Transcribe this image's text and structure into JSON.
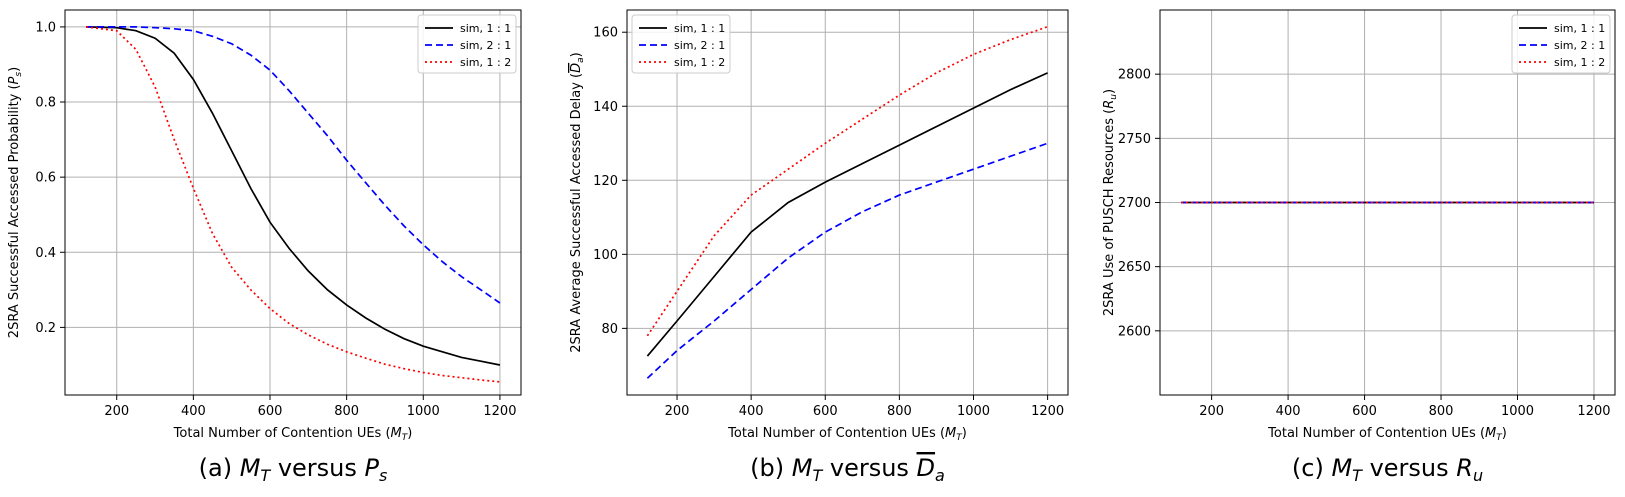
{
  "figure": {
    "captions": [
      "(a) M_T versus P_s",
      "(b) M_T versus D_a (overline)",
      "(c) M_T versus R_u"
    ]
  },
  "chart_data": [
    {
      "type": "line",
      "caption": {
        "prefix": "(a)",
        "left_var": "M",
        "left_sub": "T",
        "word": "versus",
        "right_var": "P",
        "right_sub": "s",
        "overline": false
      },
      "xlabel": "Total Number of Contention UEs (M_T)",
      "ylabel": "2SRA Successful Accessed Probability (P_s)",
      "xlabel_parts": {
        "text": "Total Number of Contention UEs (",
        "var": "M",
        "sub": "T",
        "close": ")"
      },
      "ylabel_parts": {
        "text": "2SRA Successful Accessed Probability (",
        "var": "P",
        "sub": "s",
        "close": ")"
      },
      "xlim": [
        65,
        1255
      ],
      "ylim": [
        0.02,
        1.045
      ],
      "xticks": [
        200,
        400,
        600,
        800,
        1000,
        1200
      ],
      "yticks": [
        0.2,
        0.4,
        0.6,
        0.8,
        1.0
      ],
      "ytick_labels": [
        "0.2",
        "0.4",
        "0.6",
        "0.8",
        "1.0"
      ],
      "grid": true,
      "legend_position": "upper right",
      "x": [
        120,
        200,
        250,
        300,
        350,
        400,
        450,
        500,
        550,
        600,
        650,
        700,
        750,
        800,
        850,
        900,
        950,
        1000,
        1050,
        1100,
        1150,
        1200
      ],
      "series": [
        {
          "name": "sim, 1 : 1",
          "color": "#000000",
          "style": "solid",
          "values": [
            1.0,
            0.998,
            0.99,
            0.97,
            0.93,
            0.86,
            0.77,
            0.67,
            0.57,
            0.48,
            0.41,
            0.35,
            0.3,
            0.26,
            0.225,
            0.195,
            0.17,
            0.15,
            0.135,
            0.12,
            0.11,
            0.1
          ]
        },
        {
          "name": "sim, 2 : 1",
          "color": "#0000ff",
          "style": "dashed",
          "values": [
            1.0,
            1.0,
            1.0,
            0.998,
            0.995,
            0.99,
            0.975,
            0.955,
            0.925,
            0.885,
            0.83,
            0.77,
            0.71,
            0.645,
            0.585,
            0.525,
            0.47,
            0.42,
            0.375,
            0.335,
            0.3,
            0.265
          ]
        },
        {
          "name": "sim, 1 : 2",
          "color": "#ff0000",
          "style": "dotted",
          "values": [
            1.0,
            0.99,
            0.94,
            0.84,
            0.7,
            0.57,
            0.45,
            0.36,
            0.3,
            0.25,
            0.21,
            0.18,
            0.155,
            0.135,
            0.118,
            0.102,
            0.09,
            0.08,
            0.072,
            0.066,
            0.06,
            0.055
          ]
        }
      ],
      "legend_entries": [
        {
          "label": "sim, 1 : 1",
          "color": "#000000",
          "style": "solid"
        },
        {
          "label": "sim, 2 : 1",
          "color": "#0000ff",
          "style": "dashed"
        },
        {
          "label": "sim, 1 : 2",
          "color": "#ff0000",
          "style": "dotted"
        }
      ]
    },
    {
      "type": "line",
      "caption": {
        "prefix": "(b)",
        "left_var": "M",
        "left_sub": "T",
        "word": "versus",
        "right_var": "D",
        "right_sub": "a",
        "overline": true
      },
      "xlabel": "Total Number of Contention UEs (M_T)",
      "ylabel": "2SRA Average Successful Accessed Delay (D_a overline)",
      "xlabel_parts": {
        "text": "Total Number of Contention UEs (",
        "var": "M",
        "sub": "T",
        "close": ")"
      },
      "ylabel_parts": {
        "text": "2SRA Average Successful Accessed Delay (",
        "var": "D",
        "sub": "a",
        "close": ")"
      },
      "xlim": [
        65,
        1255
      ],
      "ylim": [
        62,
        166
      ],
      "xticks": [
        200,
        400,
        600,
        800,
        1000,
        1200
      ],
      "yticks": [
        80,
        100,
        120,
        140,
        160
      ],
      "ytick_labels": [
        "80",
        "100",
        "120",
        "140",
        "160"
      ],
      "grid": true,
      "legend_position": "upper left",
      "x": [
        120,
        200,
        300,
        400,
        500,
        600,
        700,
        800,
        900,
        1000,
        1100,
        1200
      ],
      "series": [
        {
          "name": "sim, 1 : 1",
          "color": "#000000",
          "style": "solid",
          "values": [
            72.5,
            82,
            94,
            106,
            114,
            119.5,
            124.5,
            129.5,
            134.5,
            139.5,
            144.5,
            149
          ]
        },
        {
          "name": "sim, 2 : 1",
          "color": "#0000ff",
          "style": "dashed",
          "values": [
            66.5,
            74,
            82,
            90.5,
            99,
            106,
            111.5,
            116,
            119.5,
            123,
            126.5,
            130
          ]
        },
        {
          "name": "sim, 1 : 2",
          "color": "#ff0000",
          "style": "dotted",
          "values": [
            78,
            90,
            105,
            116,
            123,
            130,
            136.5,
            143,
            149,
            154,
            158,
            161.5
          ]
        }
      ],
      "legend_entries": [
        {
          "label": "sim, 1 : 1",
          "color": "#000000",
          "style": "solid"
        },
        {
          "label": "sim, 2 : 1",
          "color": "#0000ff",
          "style": "dashed"
        },
        {
          "label": "sim, 1 : 2",
          "color": "#ff0000",
          "style": "dotted"
        }
      ]
    },
    {
      "type": "line",
      "caption": {
        "prefix": "(c)",
        "left_var": "M",
        "left_sub": "T",
        "word": "versus",
        "right_var": "R",
        "right_sub": "u",
        "overline": false
      },
      "xlabel": "Total Number of Contention UEs (M_T)",
      "ylabel": "2SRA Use of PUSCH Resources (R_u)",
      "xlabel_parts": {
        "text": "Total Number of Contention UEs (",
        "var": "M",
        "sub": "T",
        "close": ")"
      },
      "ylabel_parts": {
        "text": "2SRA Use of PUSCH Resources (",
        "var": "R",
        "sub": "u",
        "close": ")"
      },
      "xlim": [
        65,
        1255
      ],
      "ylim": [
        2550,
        2850
      ],
      "xticks": [
        200,
        400,
        600,
        800,
        1000,
        1200
      ],
      "yticks": [
        2600,
        2650,
        2700,
        2750,
        2800
      ],
      "ytick_labels": [
        "2600",
        "2650",
        "2700",
        "2750",
        "2800"
      ],
      "grid": true,
      "legend_position": "upper right",
      "x": [
        120,
        1200
      ],
      "series": [
        {
          "name": "sim, 1 : 1",
          "color": "#000000",
          "style": "solid",
          "values": [
            2700,
            2700
          ]
        },
        {
          "name": "sim, 2 : 1",
          "color": "#0000ff",
          "style": "dashed",
          "values": [
            2700,
            2700
          ]
        },
        {
          "name": "sim, 1 : 2",
          "color": "#ff0000",
          "style": "dotted",
          "values": [
            2700,
            2700
          ]
        }
      ],
      "legend_entries": [
        {
          "label": "sim, 1 : 1",
          "color": "#000000",
          "style": "solid"
        },
        {
          "label": "sim, 2 : 1",
          "color": "#0000ff",
          "style": "dashed"
        },
        {
          "label": "sim, 1 : 2",
          "color": "#ff0000",
          "style": "dotted"
        }
      ]
    }
  ]
}
